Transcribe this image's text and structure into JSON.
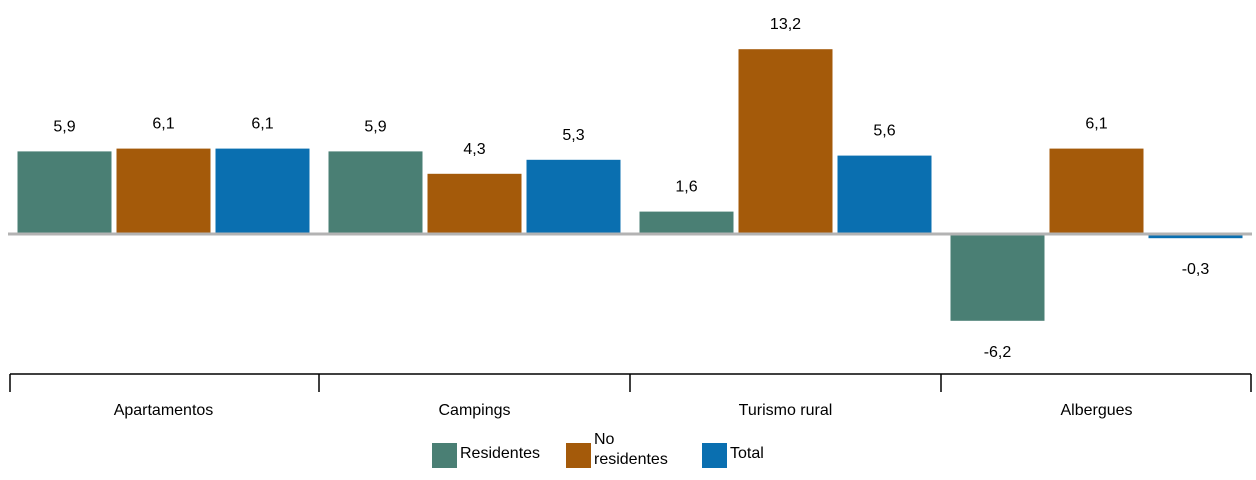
{
  "chart_data": {
    "type": "bar",
    "categories": [
      "Apartamentos",
      "Campings",
      "Turismo rural",
      "Albergues"
    ],
    "series": [
      {
        "name": "Residentes",
        "color": "#4a7f74",
        "values": [
          5.9,
          5.9,
          1.6,
          -6.2
        ],
        "labels": [
          "5,9",
          "5,9",
          "1,6",
          "-6,2"
        ]
      },
      {
        "name": "No residentes",
        "color": "#a45a0a",
        "values": [
          6.1,
          4.3,
          13.2,
          6.1
        ],
        "labels": [
          "6,1",
          "4,3",
          "13,2",
          "6,1"
        ]
      },
      {
        "name": "Total",
        "color": "#0a6fb0",
        "values": [
          6.1,
          5.3,
          5.6,
          -0.3
        ],
        "labels": [
          "6,1",
          "5,3",
          "5,6",
          "-0,3"
        ]
      }
    ],
    "ylim": [
      -8,
      14
    ],
    "grid": false,
    "legend_position": "bottom"
  }
}
